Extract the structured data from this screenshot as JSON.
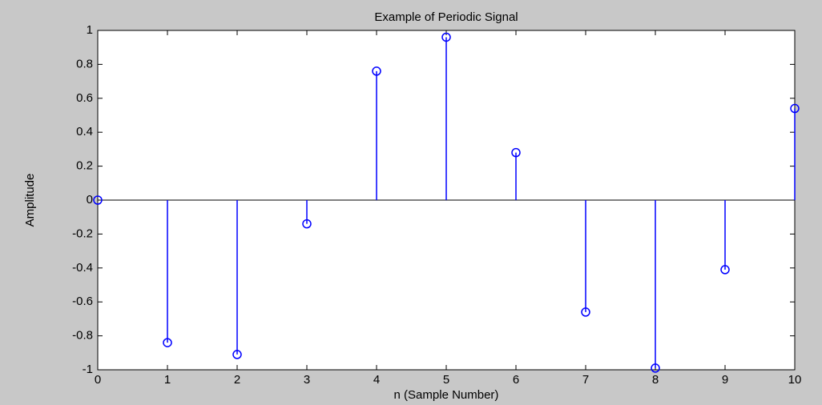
{
  "chart_data": {
    "type": "stem",
    "title": "Example of Periodic Signal",
    "xlabel": "n (Sample Number)",
    "ylabel": "Amplitude",
    "x": [
      0,
      1,
      2,
      3,
      4,
      5,
      6,
      7,
      8,
      9,
      10
    ],
    "values": [
      0,
      -0.84,
      -0.91,
      -0.14,
      0.76,
      0.96,
      0.28,
      -0.66,
      -0.99,
      -0.41,
      0.54
    ],
    "color": "#0000ff",
    "xlim": [
      0,
      10
    ],
    "xticks": [
      0,
      1,
      2,
      3,
      4,
      5,
      6,
      7,
      8,
      9,
      10
    ],
    "ylim": [
      -1,
      1
    ],
    "yticks": [
      -1,
      -0.8,
      -0.6,
      -0.4,
      -0.2,
      0,
      0.2,
      0.4,
      0.6,
      0.8,
      1
    ],
    "grid": false
  }
}
